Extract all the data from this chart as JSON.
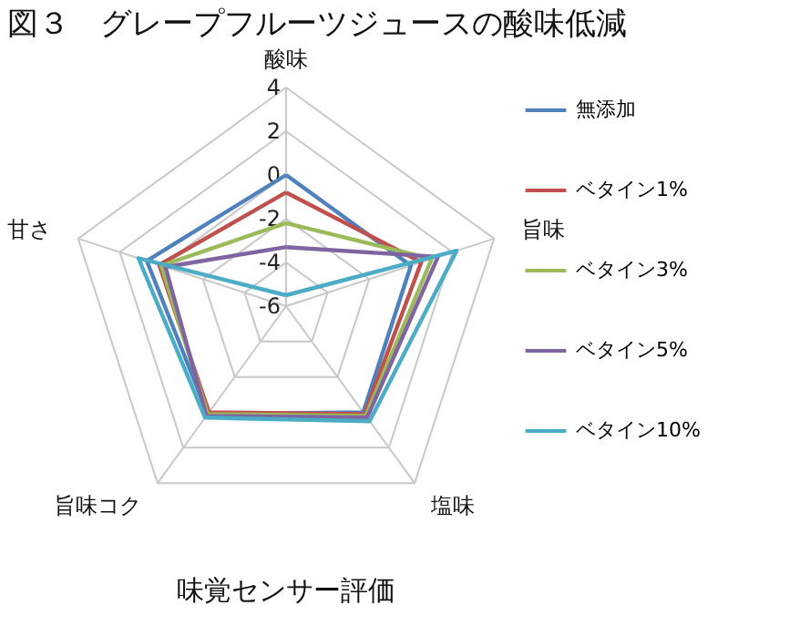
{
  "chart_data": {
    "type": "radar",
    "title": "図３　グレープフルーツジュースの酸味低減",
    "annotations": [
      "味覚センサー評価"
    ],
    "categories": [
      "酸味",
      "旨味",
      "塩味",
      "旨味コク",
      "甘さ"
    ],
    "ylim": [
      -6,
      4
    ],
    "yticks": [
      -6,
      -4,
      -2,
      0,
      2,
      4
    ],
    "grid": true,
    "legend": "right",
    "marker": "none",
    "line_style": "solid",
    "series": [
      {
        "name": "無添加",
        "color": "#4f81bd",
        "values": [
          0.0,
          0.0,
          0.0,
          0.1,
          0.7
        ]
      },
      {
        "name": "ベタイン1%",
        "color": "#c0504d",
        "values": [
          -0.8,
          0.5,
          0.1,
          0.0,
          0.1
        ]
      },
      {
        "name": "ベタイン3%",
        "color": "#9bbb59",
        "values": [
          -2.2,
          1.0,
          0.2,
          0.1,
          0.0
        ]
      },
      {
        "name": "ベタイン5%",
        "color": "#8064a2",
        "values": [
          -3.3,
          1.3,
          0.3,
          0.2,
          -0.2
        ]
      },
      {
        "name": "ベタイン10%",
        "color": "#4bacc6",
        "values": [
          -5.5,
          2.2,
          0.5,
          0.3,
          1.1
        ]
      }
    ]
  }
}
